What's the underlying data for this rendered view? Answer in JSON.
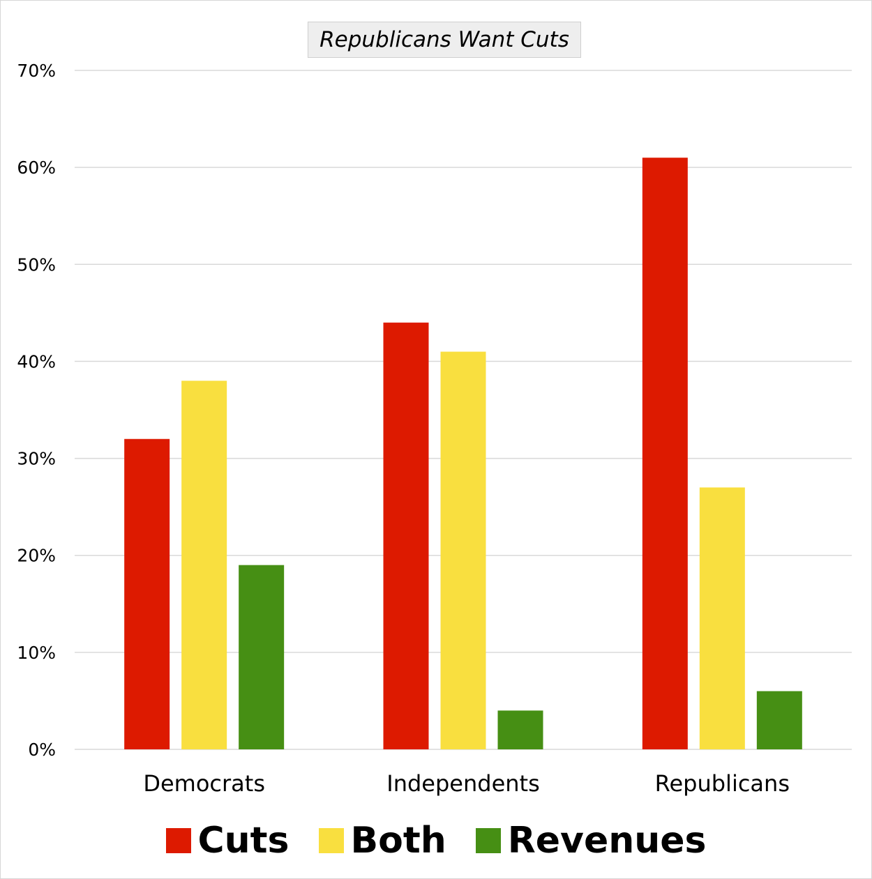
{
  "chart_data": {
    "type": "bar",
    "title": "Republicans Want Cuts",
    "categories": [
      "Democrats",
      "Independents",
      "Republicans"
    ],
    "series": [
      {
        "name": "Cuts",
        "color": "#dd1a00",
        "values": [
          32,
          44,
          61
        ]
      },
      {
        "name": "Both",
        "color": "#f9df3f",
        "values": [
          38,
          41,
          27
        ]
      },
      {
        "name": "Revenues",
        "color": "#468f14",
        "values": [
          19,
          4,
          6
        ]
      }
    ],
    "ylim": [
      0,
      70
    ],
    "yticks": [
      0,
      10,
      20,
      30,
      40,
      50,
      60,
      70
    ],
    "ytick_labels": [
      "0%",
      "10%",
      "20%",
      "30%",
      "40%",
      "50%",
      "60%",
      "70%"
    ],
    "grid": true,
    "legend_position": "bottom"
  }
}
